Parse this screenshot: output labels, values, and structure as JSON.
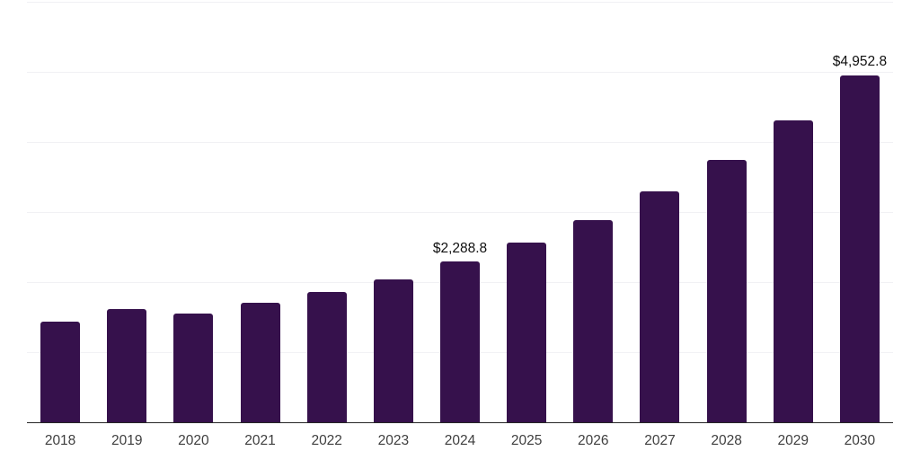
{
  "page": {
    "background": "#ffffff"
  },
  "chart_data": {
    "type": "bar",
    "title": "",
    "xlabel": "",
    "ylabel": "",
    "categories": [
      "2018",
      "2019",
      "2020",
      "2021",
      "2022",
      "2023",
      "2024",
      "2025",
      "2026",
      "2027",
      "2028",
      "2029",
      "2030"
    ],
    "values": [
      1430,
      1620,
      1550,
      1700,
      1855,
      2045,
      2288.8,
      2570,
      2890,
      3300,
      3750,
      4310,
      4952.8
    ],
    "data_labels": [
      {
        "category": "2024",
        "text": "$2,288.8"
      },
      {
        "category": "2030",
        "text": "$4,952.8"
      }
    ],
    "ylim": [
      0,
      6000
    ],
    "grid": true,
    "grid_step": 1000,
    "legend": false,
    "bar_color": "#36114C",
    "grid_color": "#f1f1f4",
    "axis_line_color": "#262626",
    "tick_label_color": "#3f3f3f",
    "data_label_color": "#101010"
  }
}
